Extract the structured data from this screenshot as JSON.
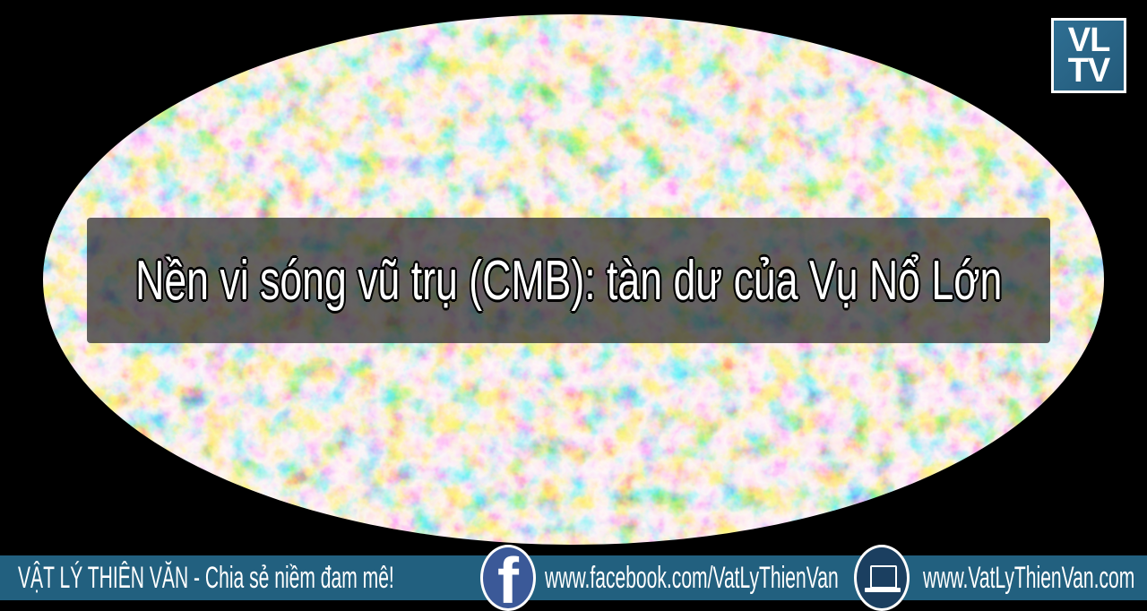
{
  "title": "Nền vi sóng vũ trụ (CMB): tàn dư của Vụ Nổ Lớn",
  "logo": {
    "line1": "VL",
    "line2": "TV"
  },
  "footer": {
    "tagline": "VẬT LÝ THIÊN VĂN - Chia sẻ niềm đam mê!",
    "facebook_url": "www.facebook.com/VatLyThienVan",
    "website_url": "www.VatLyThienVan.com",
    "icons": [
      "facebook-icon",
      "laptop-icon"
    ]
  },
  "colors": {
    "footer_bg": "#22607f",
    "facebook_blue": "#3b5998",
    "map_blue": "#2a5bd7",
    "map_orange": "#e0902a"
  }
}
